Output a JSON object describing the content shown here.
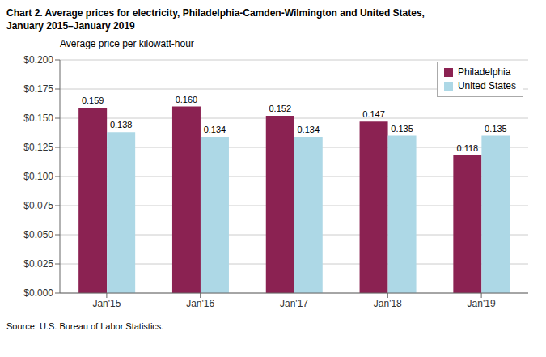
{
  "chart_data": {
    "type": "bar",
    "title": "Chart 2. Average prices for electricity, Philadelphia-Camden-Wilmington and United States,\nJanuary 2015–January 2019",
    "ylabel": "Average price per kilowatt-hour",
    "annotations": [
      "Source: U.S. Bureau of Labor Statistics."
    ],
    "categories": [
      "Jan'15",
      "Jan'16",
      "Jan'17",
      "Jan'18",
      "Jan'19"
    ],
    "series": [
      {
        "name": "Philadelphia",
        "color": "#8B2252",
        "values": [
          0.159,
          0.16,
          0.152,
          0.147,
          0.118
        ],
        "value_labels": [
          "0.159",
          "0.160",
          "0.152",
          "0.147",
          "0.118"
        ]
      },
      {
        "name": "United States",
        "color": "#ADD8E6",
        "values": [
          0.138,
          0.134,
          0.134,
          0.135,
          0.135
        ],
        "value_labels": [
          "0.138",
          "0.134",
          "0.134",
          "0.135",
          "0.135"
        ]
      }
    ],
    "ylim": [
      0.0,
      0.2
    ],
    "yticks": [
      {
        "value": 0.0,
        "label": "$0.000"
      },
      {
        "value": 0.025,
        "label": "$0.025"
      },
      {
        "value": 0.05,
        "label": "$0.050"
      },
      {
        "value": 0.075,
        "label": "$0.075"
      },
      {
        "value": 0.1,
        "label": "$0.100"
      },
      {
        "value": 0.125,
        "label": "$0.125"
      },
      {
        "value": 0.15,
        "label": "$0.150"
      },
      {
        "value": 0.175,
        "label": "$0.175"
      },
      {
        "value": 0.2,
        "label": "$0.200"
      }
    ],
    "grid": true,
    "legend": "upper right",
    "data_labels": true
  }
}
